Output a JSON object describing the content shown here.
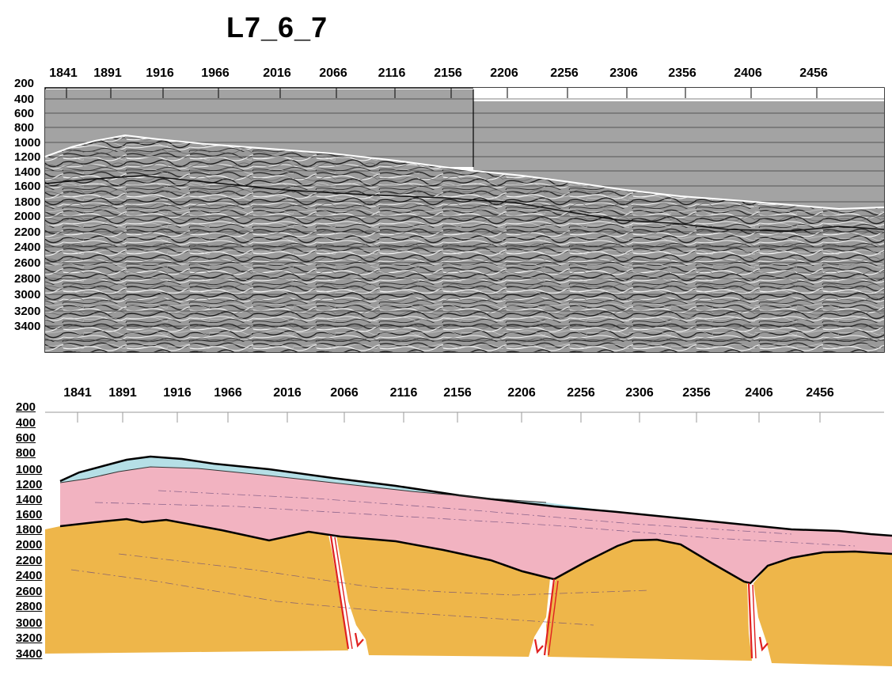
{
  "title": "L7_6_7",
  "top_panel": {
    "x_ticks": [
      "1841",
      "1891",
      "1916",
      "1966",
      "2016",
      "2066",
      "2116",
      "2156",
      "2206",
      "2256",
      "2306",
      "2356",
      "2406",
      "2456"
    ],
    "y_ticks": [
      "200",
      "400",
      "600",
      "800",
      "1000",
      "1200",
      "1400",
      "1600",
      "1800",
      "2000",
      "2200",
      "2400",
      "2600",
      "2800",
      "3000",
      "3200",
      "3400"
    ]
  },
  "bottom_panel": {
    "x_ticks": [
      "1841",
      "1891",
      "1916",
      "1966",
      "2016",
      "2066",
      "2116",
      "2156",
      "2206",
      "2256",
      "2306",
      "2356",
      "2406",
      "2456"
    ],
    "y_ticks": [
      "200",
      "400",
      "600",
      "800",
      "1000",
      "1200",
      "1400",
      "1600",
      "1800",
      "2000",
      "2200",
      "2400",
      "2600",
      "2800",
      "3000",
      "3200",
      "3400"
    ],
    "layers": [
      {
        "name": "water-layer",
        "color": "#b5dfe6"
      },
      {
        "name": "upper-sediment",
        "color": "#f2b3c1"
      },
      {
        "name": "basement",
        "color": "#eeb64a"
      }
    ],
    "fault_color": "#e02020"
  },
  "colors": {
    "seismic_gray": "#a3a3a3",
    "horizon_line": "#111111"
  }
}
